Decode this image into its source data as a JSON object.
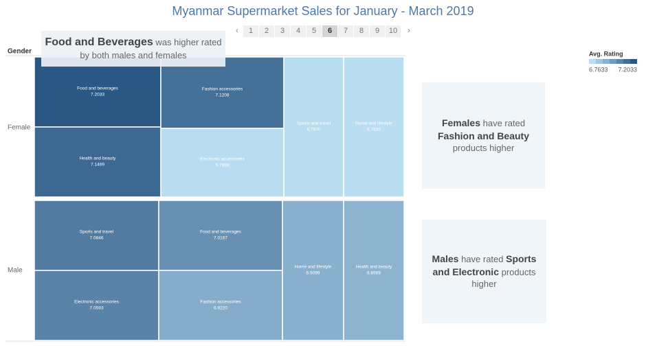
{
  "chart_data": {
    "type": "treemap",
    "title": "Myanmar Supermarket Sales for January - March 2019",
    "row_header": "Gender",
    "groups": [
      {
        "name": "Female",
        "categories": [
          "Food and beverages",
          "Health and beauty",
          "Fashion accessories",
          "Electronic accessories",
          "Sports and travel",
          "Home and lifestyle"
        ],
        "values": [
          7.2033,
          7.1469,
          7.1208,
          6.7669,
          6.767,
          6.7633
        ],
        "value_labels": [
          "7.2033",
          "7.1469",
          "7.1208",
          "6.7669",
          "6.7670",
          "6.7633"
        ]
      },
      {
        "name": "Male",
        "categories": [
          "Sports and travel",
          "Electronic accessories",
          "Food and beverages",
          "Fashion accessories",
          "Home and lifestyle",
          "Health and beauty"
        ],
        "values": [
          7.0846,
          7.0593,
          7.0167,
          6.922,
          6.9099,
          6.8989
        ],
        "value_labels": [
          "7.0846",
          "7.0593",
          "7.0167",
          "6.9220",
          "6.9099",
          "6.8989"
        ]
      }
    ],
    "color_legend": {
      "title": "Avg. Rating",
      "min": 6.7633,
      "max": 7.2033,
      "colors": [
        "#b9ddf1",
        "#2a5783"
      ]
    },
    "annotations": [
      [
        {
          "text": "Food and Beverages",
          "strong": true
        },
        {
          "text": " was higher rated by both males and females",
          "strong": false
        }
      ],
      [
        {
          "text": "Females",
          "strong": true
        },
        {
          "text": " have rated ",
          "strong": false
        },
        {
          "text": "Fashion and Beauty",
          "strong": true
        },
        {
          "text": " products higher",
          "strong": false
        }
      ],
      [
        {
          "text": "Males",
          "strong": true
        },
        {
          "text": " have rated ",
          "strong": false
        },
        {
          "text": "Sports and Electronic",
          "strong": true
        },
        {
          "text": " products higher",
          "strong": false
        }
      ]
    ],
    "pager": {
      "pages": [
        1,
        2,
        3,
        4,
        5,
        6,
        7,
        8,
        9,
        10
      ],
      "current": 6
    }
  }
}
